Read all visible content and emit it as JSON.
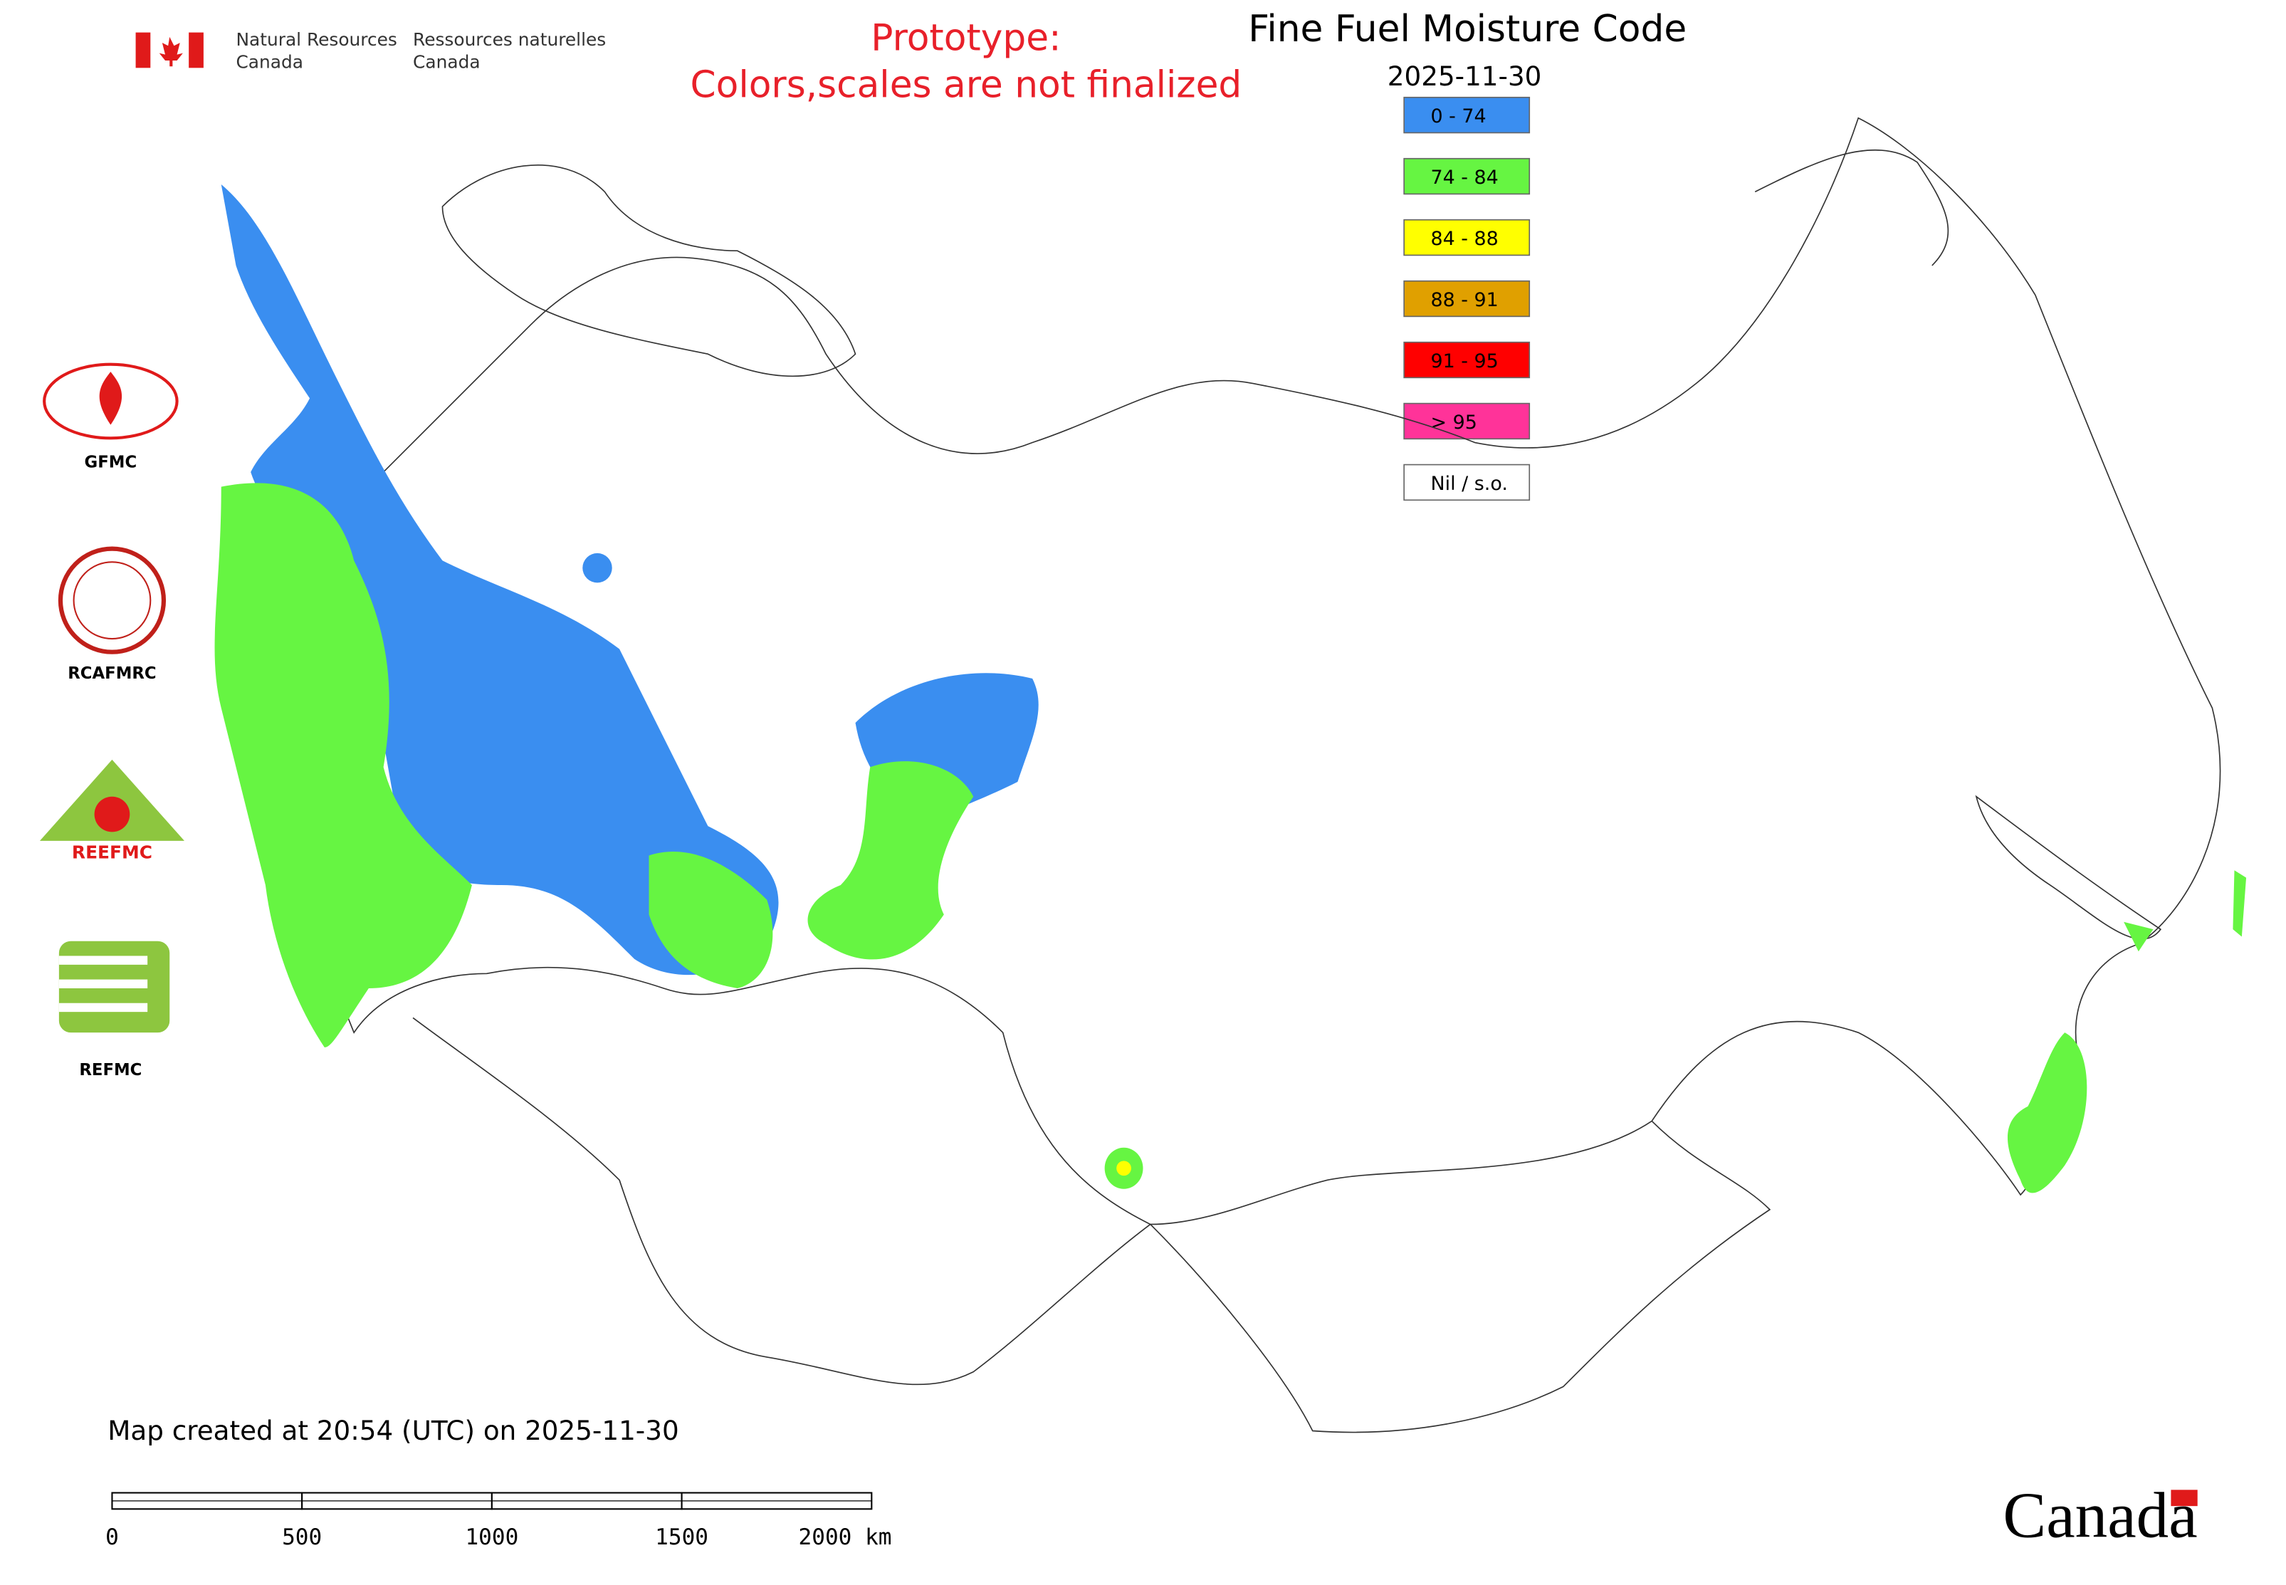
{
  "header": {
    "agency_en": [
      "Natural Resources",
      "Canada"
    ],
    "agency_fr": [
      "Ressources naturelles",
      "Canada"
    ],
    "notice": [
      "Prototype:",
      "Colors,scales are not finalized"
    ]
  },
  "title": "Fine Fuel Moisture Code",
  "date": "2025-11-30",
  "legend": [
    {
      "label": "0 - 74",
      "color": "#3a8ef0"
    },
    {
      "label": "74 - 84",
      "color": "#66f542"
    },
    {
      "label": "84 - 88",
      "color": "#ffff00"
    },
    {
      "label": "88 - 91",
      "color": "#e0a000"
    },
    {
      "label": "91 - 95",
      "color": "#ff0000"
    },
    {
      "label": "> 95",
      "color": "#ff3399"
    },
    {
      "label": "Nil / s.o.",
      "color": "#ffffff"
    }
  ],
  "logos": [
    "GFMC",
    "RCAFMRC",
    "REEFMC",
    "REFMC"
  ],
  "footer": {
    "created": "Map created at 20:54 (UTC) on 2025-11-30",
    "scale_labels": [
      "0",
      "500",
      "1000",
      "1500",
      "2000 km"
    ],
    "wordmark": "Canada"
  }
}
